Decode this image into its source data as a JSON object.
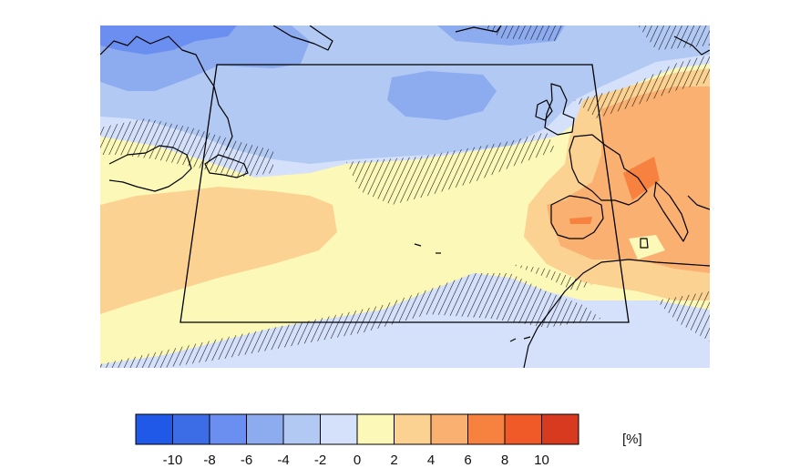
{
  "colorbar": {
    "colors": [
      "#2058e8",
      "#3d6de6",
      "#6a8ff0",
      "#8dabef",
      "#b1c9f3",
      "#d5e1fb",
      "#fcf8b7",
      "#fbd291",
      "#f9b071",
      "#f7813f",
      "#f05a28",
      "#d83a1f"
    ],
    "ticks": [
      "-10",
      "-8",
      "-6",
      "-4",
      "-2",
      "0",
      "2",
      "4",
      "6",
      "8",
      "10"
    ],
    "unit": "[%]"
  },
  "field_colors": {
    "blue_dark": "#6a8ff0",
    "blue_mid": "#8dabef",
    "blue_light": "#b1c9f3",
    "blue_pale": "#d5e1fb",
    "yellow": "#fcf8b7",
    "orange_light": "#fbd291",
    "orange": "#f9b071",
    "orange_dark": "#f7813f"
  }
}
